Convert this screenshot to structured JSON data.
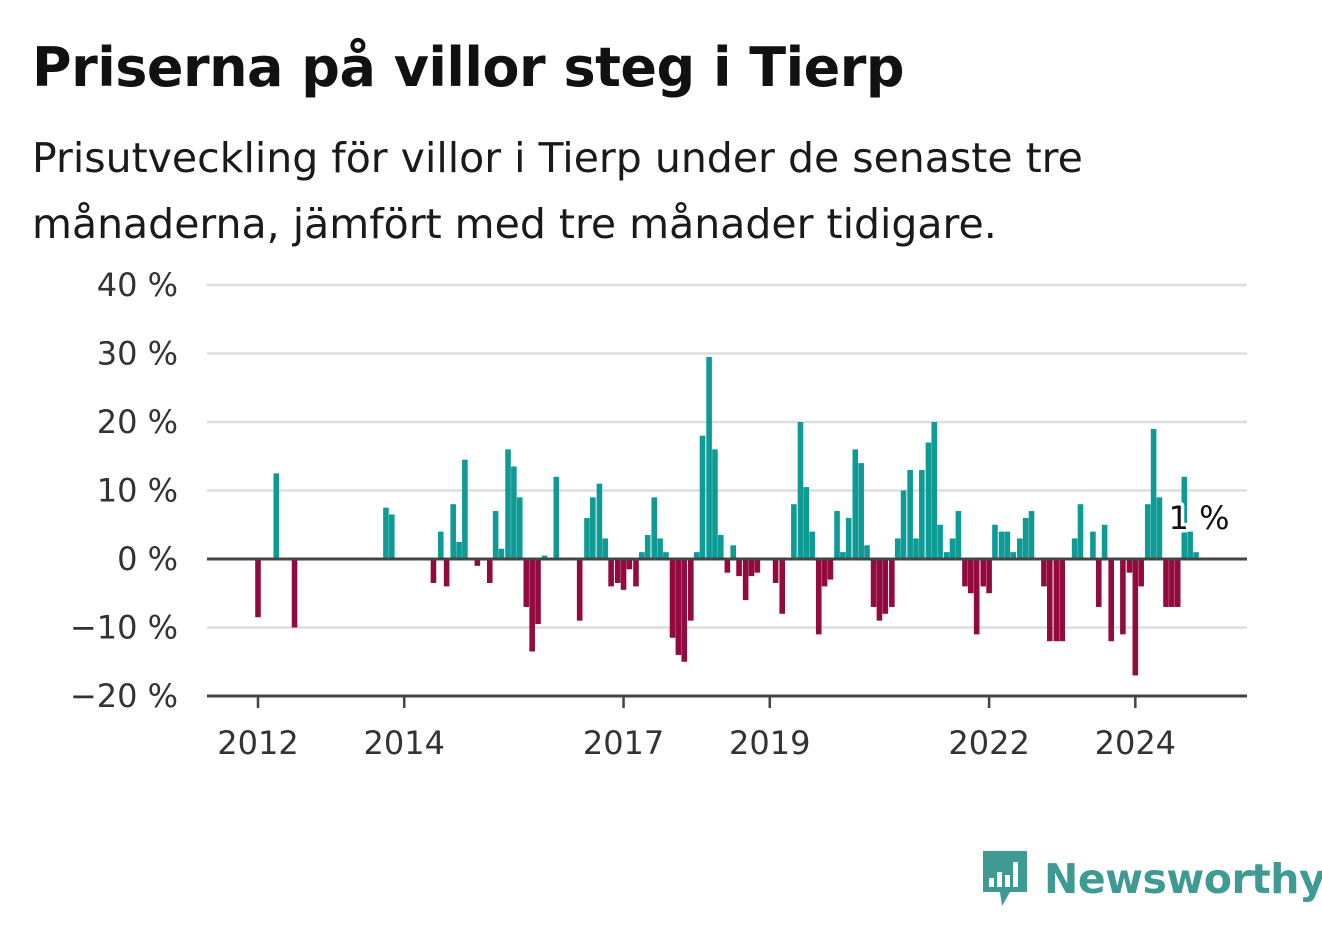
{
  "header": {
    "title": "Priserna på villor steg i Tierp",
    "subtitle": "Prisutveckling för villor i Tierp under de senaste tre månaderna, jämfört med tre månader tidigare."
  },
  "brand": {
    "name": "Newsworthy",
    "icon": "newsworthy-logo-icon",
    "color": "#3f9a93"
  },
  "chart_data": {
    "type": "bar",
    "title": "Priserna på villor steg i Tierp",
    "subtitle": "Prisutveckling för villor i Tierp under de senaste tre månaderna, jämfört med tre månader tidigare.",
    "xlabel": "",
    "ylabel": "",
    "ylim": [
      -20,
      40
    ],
    "y_ticks": [
      40,
      30,
      20,
      10,
      0,
      -10,
      -20
    ],
    "y_tick_labels": [
      "40 %",
      "30 %",
      "20 %",
      "10 %",
      "0 %",
      "−10 %",
      "−20 %"
    ],
    "x_ticks": [
      {
        "label": "2012",
        "year": 2012
      },
      {
        "label": "2014",
        "year": 2014
      },
      {
        "label": "2017",
        "year": 2017
      },
      {
        "label": "2019",
        "year": 2019
      },
      {
        "label": "2022",
        "year": 2022
      },
      {
        "label": "2024",
        "year": 2024
      }
    ],
    "grid": true,
    "colors": {
      "positive": "#0e9a95",
      "negative": "#930a3e"
    },
    "annotation": {
      "label": "1 %",
      "year": 2024.83,
      "value": 1
    },
    "series": [
      {
        "points": [
          [
            2012.0,
            -8.5
          ],
          [
            2012.25,
            12.5
          ],
          [
            2012.5,
            -10
          ],
          [
            2013.75,
            7.5
          ],
          [
            2013.83,
            6.5
          ],
          [
            2014.4,
            -3.5
          ],
          [
            2014.5,
            4
          ],
          [
            2014.58,
            -4
          ],
          [
            2014.67,
            8
          ],
          [
            2014.75,
            2.5
          ],
          [
            2014.83,
            14.5
          ],
          [
            2015.0,
            -1
          ],
          [
            2015.17,
            -3.5
          ],
          [
            2015.25,
            7
          ],
          [
            2015.33,
            1.5
          ],
          [
            2015.42,
            16
          ],
          [
            2015.5,
            13.5
          ],
          [
            2015.58,
            9
          ],
          [
            2015.67,
            -7
          ],
          [
            2015.75,
            -13.5
          ],
          [
            2015.83,
            -9.5
          ],
          [
            2015.92,
            0.5
          ],
          [
            2016.08,
            12
          ],
          [
            2016.4,
            -9
          ],
          [
            2016.5,
            6
          ],
          [
            2016.58,
            9
          ],
          [
            2016.67,
            11
          ],
          [
            2016.75,
            3
          ],
          [
            2016.83,
            -4
          ],
          [
            2016.92,
            -3.5
          ],
          [
            2017.0,
            -4.5
          ],
          [
            2017.08,
            -1.5
          ],
          [
            2017.17,
            -4
          ],
          [
            2017.25,
            1
          ],
          [
            2017.33,
            3.5
          ],
          [
            2017.42,
            9
          ],
          [
            2017.5,
            3
          ],
          [
            2017.58,
            1
          ],
          [
            2017.67,
            -11.5
          ],
          [
            2017.75,
            -14
          ],
          [
            2017.83,
            -15
          ],
          [
            2017.92,
            -9
          ],
          [
            2018.0,
            1
          ],
          [
            2018.08,
            18
          ],
          [
            2018.17,
            29.5
          ],
          [
            2018.25,
            16
          ],
          [
            2018.33,
            3.5
          ],
          [
            2018.42,
            -2
          ],
          [
            2018.5,
            2
          ],
          [
            2018.58,
            -2.5
          ],
          [
            2018.67,
            -6
          ],
          [
            2018.75,
            -2.5
          ],
          [
            2018.83,
            -2
          ],
          [
            2019.08,
            -3.5
          ],
          [
            2019.17,
            -8
          ],
          [
            2019.33,
            8
          ],
          [
            2019.42,
            20
          ],
          [
            2019.5,
            10.5
          ],
          [
            2019.58,
            4
          ],
          [
            2019.67,
            -11
          ],
          [
            2019.75,
            -4
          ],
          [
            2019.83,
            -3
          ],
          [
            2019.92,
            7
          ],
          [
            2020.0,
            1
          ],
          [
            2020.08,
            6
          ],
          [
            2020.17,
            16
          ],
          [
            2020.25,
            14
          ],
          [
            2020.33,
            2
          ],
          [
            2020.42,
            -7
          ],
          [
            2020.5,
            -9
          ],
          [
            2020.58,
            -8
          ],
          [
            2020.67,
            -7
          ],
          [
            2020.75,
            3
          ],
          [
            2020.83,
            10
          ],
          [
            2020.92,
            13
          ],
          [
            2021.0,
            3
          ],
          [
            2021.08,
            13
          ],
          [
            2021.17,
            17
          ],
          [
            2021.25,
            20
          ],
          [
            2021.33,
            5
          ],
          [
            2021.42,
            1
          ],
          [
            2021.5,
            3
          ],
          [
            2021.58,
            7
          ],
          [
            2021.67,
            -4
          ],
          [
            2021.75,
            -5
          ],
          [
            2021.83,
            -11
          ],
          [
            2021.92,
            -4
          ],
          [
            2022.0,
            -5
          ],
          [
            2022.08,
            5
          ],
          [
            2022.17,
            4
          ],
          [
            2022.25,
            4
          ],
          [
            2022.33,
            1
          ],
          [
            2022.42,
            3
          ],
          [
            2022.5,
            6
          ],
          [
            2022.58,
            7
          ],
          [
            2022.75,
            -4
          ],
          [
            2022.83,
            -12
          ],
          [
            2022.92,
            -12
          ],
          [
            2023.0,
            -12
          ],
          [
            2023.17,
            3
          ],
          [
            2023.25,
            8
          ],
          [
            2023.42,
            4
          ],
          [
            2023.5,
            -7
          ],
          [
            2023.58,
            5
          ],
          [
            2023.67,
            -12
          ],
          [
            2023.83,
            -11
          ],
          [
            2023.92,
            -2
          ],
          [
            2024.0,
            -17
          ],
          [
            2024.08,
            -4
          ],
          [
            2024.17,
            8
          ],
          [
            2024.25,
            19
          ],
          [
            2024.33,
            9
          ],
          [
            2024.42,
            -7
          ],
          [
            2024.5,
            -7
          ],
          [
            2024.58,
            -7
          ],
          [
            2024.67,
            12
          ],
          [
            2024.75,
            4
          ],
          [
            2024.83,
            1
          ]
        ]
      }
    ]
  }
}
